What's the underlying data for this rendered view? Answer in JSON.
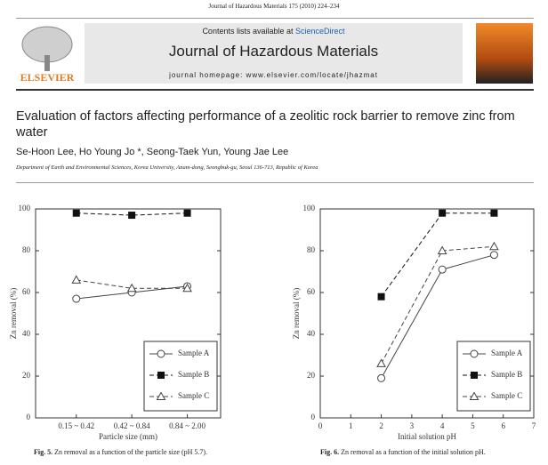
{
  "header": {
    "journal_ref": "Journal of Hazardous Materials 175 (2010) 224–234",
    "contents": "Contents lists available at",
    "sciencedirect": "ScienceDirect",
    "journal_name": "Journal of Hazardous Materials",
    "homepage": "journal homepage: www.elsevier.com/locate/jhazmat",
    "publisher": "ELSEVIER"
  },
  "article": {
    "title": "Evaluation of factors affecting performance of a zeolitic rock barrier to remove zinc from water",
    "authors": "Se-Hoon Lee, Ho Young Jo *, Seong-Taek Yun, Young Jae Lee",
    "affiliation": "Department of Earth and Environmental Sciences, Korea University, Anam-dong, Seongbuk-gu, Seoul 136-713, Republic of Korea"
  },
  "chart_data": [
    {
      "type": "line",
      "figure_label": "Fig. 5.",
      "caption": "Zn removal as a function of the particle size (pH 5.7).",
      "x_label": "Particle size (mm)",
      "y_label": "Zn removal (%)",
      "categories": [
        "0.15 ~ 0.42",
        "0.42 ~ 0.84",
        "0.84 ~ 2.00"
      ],
      "ylim": [
        0,
        100
      ],
      "yticks": [
        0,
        20,
        40,
        60,
        80,
        100
      ],
      "legend": "lower right",
      "series": [
        {
          "name": "Sample A",
          "color": "#444444",
          "marker": "circle",
          "dashed": false,
          "values": [
            57,
            60,
            63
          ]
        },
        {
          "name": "Sample B",
          "color": "#111111",
          "marker": "square",
          "dashed": true,
          "values": [
            98,
            97,
            98
          ]
        },
        {
          "name": "Sample C",
          "color": "#444444",
          "marker": "triangle",
          "dashed": true,
          "values": [
            66,
            62,
            62
          ]
        }
      ]
    },
    {
      "type": "line",
      "figure_label": "Fig. 6.",
      "caption": "Zn removal as a function of the initial solution pH.",
      "x_label": "Initial solution pH",
      "y_label": "Zn removal (%)",
      "x": [
        2,
        4,
        5.7
      ],
      "xlim": [
        0,
        7
      ],
      "xticks": [
        0,
        1,
        2,
        3,
        4,
        5,
        6,
        7
      ],
      "ylim": [
        0,
        100
      ],
      "yticks": [
        0,
        20,
        40,
        60,
        80,
        100
      ],
      "legend": "lower right",
      "series": [
        {
          "name": "Sample A",
          "color": "#444444",
          "marker": "circle",
          "dashed": false,
          "values": [
            19,
            71,
            78
          ]
        },
        {
          "name": "Sample B",
          "color": "#111111",
          "marker": "square",
          "dashed": true,
          "values": [
            58,
            98,
            98
          ]
        },
        {
          "name": "Sample C",
          "color": "#444444",
          "marker": "triangle",
          "dashed": true,
          "values": [
            26,
            80,
            82
          ]
        }
      ]
    }
  ]
}
